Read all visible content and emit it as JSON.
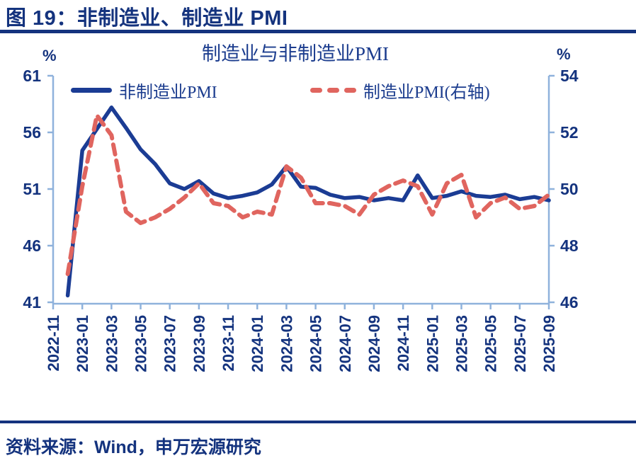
{
  "header": {
    "title": "图 19：非制造业、制造业 PMI"
  },
  "footer": {
    "source": "资料来源：Wind，申万宏源研究"
  },
  "colors": {
    "navy_text": "#14337E",
    "non_manufacturing_line": "#1B3C94",
    "manufacturing_line": "#E0655F",
    "axis_line": "#8FB2DC"
  },
  "chart_data": {
    "type": "line",
    "title": "制造业与非制造业PMI",
    "legend_position": "top",
    "grid": false,
    "left_axis": {
      "unit": "%",
      "min": 41,
      "max": 61,
      "ticks": [
        61,
        56,
        51,
        46,
        41
      ]
    },
    "right_axis": {
      "unit": "%",
      "min": 46,
      "max": 54,
      "ticks": [
        54,
        52,
        50,
        48,
        46
      ]
    },
    "x_tick_labels": [
      "2022-11",
      "2023-01",
      "2023-03",
      "2023-05",
      "2023-07",
      "2023-09",
      "2023-11",
      "2024-01",
      "2024-03",
      "2024-05",
      "2024-07",
      "2024-09",
      "2024-11",
      "2025-01",
      "2025-03",
      "2025-05",
      "2025-07",
      "2025-09"
    ],
    "categories": [
      "2022-11",
      "2022-12",
      "2023-01",
      "2023-02",
      "2023-03",
      "2023-04",
      "2023-05",
      "2023-06",
      "2023-07",
      "2023-08",
      "2023-09",
      "2023-10",
      "2023-11",
      "2023-12",
      "2024-01",
      "2024-02",
      "2024-03",
      "2024-04",
      "2024-05",
      "2024-06",
      "2024-07",
      "2024-08",
      "2024-09",
      "2024-10",
      "2024-11",
      "2024-12",
      "2025-01",
      "2025-02",
      "2025-03",
      "2025-04",
      "2025-05",
      "2025-06",
      "2025-07",
      "2025-08",
      "2025-09"
    ],
    "series": [
      {
        "name": "非制造业PMI",
        "axis": "left",
        "style": "solid",
        "color": "#1B3C94",
        "values": [
          null,
          41.6,
          54.4,
          56.3,
          58.2,
          56.4,
          54.5,
          53.2,
          51.5,
          51.0,
          51.7,
          50.6,
          50.2,
          50.4,
          50.7,
          51.4,
          53.0,
          51.2,
          51.1,
          50.5,
          50.2,
          50.3,
          50.0,
          50.2,
          50.0,
          52.2,
          50.2,
          50.4,
          50.8,
          50.4,
          50.3,
          50.5,
          50.1,
          50.3,
          50.0
        ]
      },
      {
        "name": "制造业PMI(右轴)",
        "axis": "right",
        "style": "dashed",
        "color": "#E0655F",
        "values": [
          null,
          47.0,
          50.1,
          52.6,
          51.9,
          49.2,
          48.8,
          49.0,
          49.3,
          49.7,
          50.2,
          49.5,
          49.4,
          49.0,
          49.2,
          49.1,
          50.8,
          50.4,
          49.5,
          49.5,
          49.4,
          49.1,
          49.8,
          50.1,
          50.3,
          50.1,
          49.1,
          50.2,
          50.5,
          49.0,
          49.5,
          49.7,
          49.3,
          49.4,
          49.8
        ]
      }
    ]
  }
}
